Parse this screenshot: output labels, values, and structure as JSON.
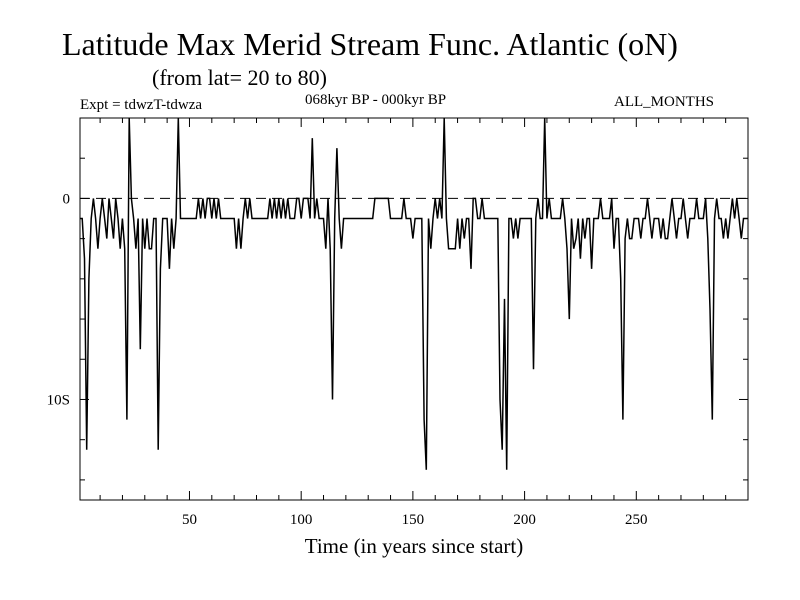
{
  "header": {
    "title": "Latitude Max Merid Stream Func. Atlantic (oN)",
    "subtitle": "(from lat= 20 to 80)",
    "expt": "Expt = tdwzT-tdwza",
    "period": "068kyr BP - 000kyr BP",
    "months": "ALL_MONTHS"
  },
  "chart_data": {
    "type": "line",
    "xlabel": "Time (in years since start)",
    "ylabel": "",
    "xlim": [
      1,
      300
    ],
    "ylim": [
      -15,
      4
    ],
    "x_ticks": [
      50,
      100,
      150,
      200,
      250
    ],
    "y_ticks": [
      {
        "value": 0,
        "label": "0"
      },
      {
        "value": -10,
        "label": "10S"
      }
    ],
    "reference_line": {
      "value": 0,
      "style": "dashed"
    },
    "grid": false,
    "legend": "none",
    "series": [
      {
        "points": [
          [
            1,
            -1
          ],
          [
            2,
            -1
          ],
          [
            3,
            -3
          ],
          [
            4,
            -12.5
          ],
          [
            5,
            -4
          ],
          [
            6,
            -1
          ],
          [
            7,
            0
          ],
          [
            8,
            -1
          ],
          [
            9,
            -2.5
          ],
          [
            10,
            -1
          ],
          [
            11,
            0
          ],
          [
            12,
            -1
          ],
          [
            13,
            -2
          ],
          [
            14,
            0
          ],
          [
            15,
            -1
          ],
          [
            16,
            -2
          ],
          [
            17,
            0
          ],
          [
            18,
            -1
          ],
          [
            19,
            -2.5
          ],
          [
            20,
            -1
          ],
          [
            21,
            -2.5
          ],
          [
            22,
            -11
          ],
          [
            23,
            4
          ],
          [
            24,
            0
          ],
          [
            25,
            -1
          ],
          [
            26,
            -2.5
          ],
          [
            27,
            -1
          ],
          [
            28,
            -7.5
          ],
          [
            29,
            -1
          ],
          [
            30,
            -2.5
          ],
          [
            31,
            -1
          ],
          [
            32,
            -2.5
          ],
          [
            33,
            -2.5
          ],
          [
            34,
            -1
          ],
          [
            35,
            -1
          ],
          [
            36,
            -12.5
          ],
          [
            37,
            -3.5
          ],
          [
            38,
            -1
          ],
          [
            39,
            -1
          ],
          [
            40,
            -1
          ],
          [
            41,
            -3.5
          ],
          [
            42,
            -1
          ],
          [
            43,
            -2.5
          ],
          [
            44,
            -1
          ],
          [
            45,
            4
          ],
          [
            46,
            -1
          ],
          [
            47,
            -1
          ],
          [
            48,
            -1
          ],
          [
            49,
            -1
          ],
          [
            50,
            -1
          ],
          [
            51,
            -1
          ],
          [
            52,
            -1
          ],
          [
            53,
            -1
          ],
          [
            54,
            0
          ],
          [
            55,
            -1
          ],
          [
            56,
            0
          ],
          [
            57,
            -1
          ],
          [
            58,
            0
          ],
          [
            59,
            0
          ],
          [
            60,
            -1
          ],
          [
            61,
            0
          ],
          [
            62,
            -1
          ],
          [
            63,
            0
          ],
          [
            64,
            -1
          ],
          [
            65,
            -1
          ],
          [
            66,
            -1
          ],
          [
            67,
            -1
          ],
          [
            68,
            -1
          ],
          [
            69,
            -1
          ],
          [
            70,
            -1
          ],
          [
            71,
            -2.5
          ],
          [
            72,
            -1
          ],
          [
            73,
            -2.5
          ],
          [
            74,
            -1
          ],
          [
            75,
            0
          ],
          [
            76,
            -1
          ],
          [
            77,
            0
          ],
          [
            78,
            -1
          ],
          [
            79,
            -1
          ],
          [
            80,
            -1
          ],
          [
            81,
            -1
          ],
          [
            82,
            -1
          ],
          [
            83,
            -1
          ],
          [
            84,
            -1
          ],
          [
            85,
            -1
          ],
          [
            86,
            0
          ],
          [
            87,
            -1
          ],
          [
            88,
            0
          ],
          [
            89,
            -1
          ],
          [
            90,
            0
          ],
          [
            91,
            -1
          ],
          [
            92,
            0
          ],
          [
            93,
            -1
          ],
          [
            94,
            0
          ],
          [
            95,
            -1
          ],
          [
            96,
            -1
          ],
          [
            97,
            -1
          ],
          [
            98,
            0
          ],
          [
            99,
            0
          ],
          [
            100,
            -1
          ],
          [
            101,
            0
          ],
          [
            102,
            0
          ],
          [
            103,
            0
          ],
          [
            104,
            -1
          ],
          [
            105,
            3
          ],
          [
            106,
            -1
          ],
          [
            107,
            0
          ],
          [
            108,
            -1
          ],
          [
            109,
            -1
          ],
          [
            110,
            -1
          ],
          [
            111,
            -2.5
          ],
          [
            112,
            0
          ],
          [
            113,
            -2.5
          ],
          [
            114,
            -10
          ],
          [
            115,
            -1
          ],
          [
            116,
            2.5
          ],
          [
            117,
            -1
          ],
          [
            118,
            -2.5
          ],
          [
            119,
            -1
          ],
          [
            120,
            -1
          ],
          [
            121,
            -1
          ],
          [
            122,
            -1
          ],
          [
            123,
            -1
          ],
          [
            124,
            -1
          ],
          [
            125,
            -1
          ],
          [
            126,
            -1
          ],
          [
            127,
            -1
          ],
          [
            128,
            -1
          ],
          [
            129,
            -1
          ],
          [
            130,
            -1
          ],
          [
            131,
            -1
          ],
          [
            132,
            -1
          ],
          [
            133,
            0
          ],
          [
            134,
            0
          ],
          [
            135,
            0
          ],
          [
            136,
            0
          ],
          [
            137,
            0
          ],
          [
            138,
            0
          ],
          [
            139,
            0
          ],
          [
            140,
            -1
          ],
          [
            141,
            -1
          ],
          [
            142,
            -1
          ],
          [
            143,
            -1
          ],
          [
            144,
            -1
          ],
          [
            145,
            -1
          ],
          [
            146,
            0
          ],
          [
            147,
            -1
          ],
          [
            148,
            -1
          ],
          [
            149,
            -1
          ],
          [
            150,
            -2
          ],
          [
            151,
            -1
          ],
          [
            152,
            -1
          ],
          [
            153,
            -1
          ],
          [
            154,
            -1
          ],
          [
            155,
            -11
          ],
          [
            156,
            -13.5
          ],
          [
            157,
            -1
          ],
          [
            158,
            -2.5
          ],
          [
            159,
            -1
          ],
          [
            160,
            0
          ],
          [
            161,
            -1
          ],
          [
            162,
            0
          ],
          [
            163,
            -1
          ],
          [
            164,
            4
          ],
          [
            165,
            -1
          ],
          [
            166,
            -2.5
          ],
          [
            167,
            -2.5
          ],
          [
            168,
            -2.5
          ],
          [
            169,
            -2.5
          ],
          [
            170,
            -1
          ],
          [
            171,
            -2.5
          ],
          [
            172,
            -1
          ],
          [
            173,
            -2
          ],
          [
            174,
            -1
          ],
          [
            175,
            -1
          ],
          [
            176,
            -3.5
          ],
          [
            177,
            0
          ],
          [
            178,
            0
          ],
          [
            179,
            -1
          ],
          [
            180,
            -1
          ],
          [
            181,
            0
          ],
          [
            182,
            -1
          ],
          [
            183,
            -1
          ],
          [
            184,
            -1
          ],
          [
            185,
            -1
          ],
          [
            186,
            -1
          ],
          [
            187,
            -1
          ],
          [
            188,
            -1
          ],
          [
            189,
            -10
          ],
          [
            190,
            -12.5
          ],
          [
            191,
            -5
          ],
          [
            192,
            -13.5
          ],
          [
            193,
            -1
          ],
          [
            194,
            -1
          ],
          [
            195,
            -2
          ],
          [
            196,
            -1
          ],
          [
            197,
            -2
          ],
          [
            198,
            -1
          ],
          [
            199,
            -1
          ],
          [
            200,
            -1
          ],
          [
            201,
            -1
          ],
          [
            202,
            -1
          ],
          [
            203,
            -1
          ],
          [
            204,
            -8.5
          ],
          [
            205,
            -1
          ],
          [
            206,
            0
          ],
          [
            207,
            -1
          ],
          [
            208,
            -1
          ],
          [
            209,
            4
          ],
          [
            210,
            -1
          ],
          [
            211,
            0
          ],
          [
            212,
            -1
          ],
          [
            213,
            -1
          ],
          [
            214,
            -1
          ],
          [
            215,
            -1
          ],
          [
            216,
            -1
          ],
          [
            217,
            0
          ],
          [
            218,
            -1
          ],
          [
            219,
            -2.5
          ],
          [
            220,
            -6
          ],
          [
            221,
            -1
          ],
          [
            222,
            -2.5
          ],
          [
            223,
            -2
          ],
          [
            224,
            -1
          ],
          [
            225,
            -3
          ],
          [
            226,
            -1
          ],
          [
            227,
            -2
          ],
          [
            228,
            -1
          ],
          [
            229,
            -1
          ],
          [
            230,
            -3.5
          ],
          [
            231,
            -1
          ],
          [
            232,
            -1
          ],
          [
            233,
            -1
          ],
          [
            234,
            0
          ],
          [
            235,
            -1
          ],
          [
            236,
            -1
          ],
          [
            237,
            -1
          ],
          [
            238,
            -1
          ],
          [
            239,
            0
          ],
          [
            240,
            -2.5
          ],
          [
            241,
            -1
          ],
          [
            242,
            -1
          ],
          [
            243,
            -4
          ],
          [
            244,
            -11
          ],
          [
            245,
            -2
          ],
          [
            246,
            -1
          ],
          [
            247,
            -2
          ],
          [
            248,
            -2
          ],
          [
            249,
            -1
          ],
          [
            250,
            -1
          ],
          [
            251,
            -1
          ],
          [
            252,
            -2
          ],
          [
            253,
            -1
          ],
          [
            254,
            -1
          ],
          [
            255,
            0
          ],
          [
            256,
            -1
          ],
          [
            257,
            -2
          ],
          [
            258,
            -1
          ],
          [
            259,
            -1
          ],
          [
            260,
            -1
          ],
          [
            261,
            -2
          ],
          [
            262,
            -1
          ],
          [
            263,
            -2
          ],
          [
            264,
            -2
          ],
          [
            265,
            -1
          ],
          [
            266,
            0
          ],
          [
            267,
            -1
          ],
          [
            268,
            -2
          ],
          [
            269,
            -1
          ],
          [
            270,
            -1
          ],
          [
            271,
            0
          ],
          [
            272,
            -1
          ],
          [
            273,
            -2
          ],
          [
            274,
            -1
          ],
          [
            275,
            -1
          ],
          [
            276,
            -1
          ],
          [
            277,
            0
          ],
          [
            278,
            -1
          ],
          [
            279,
            -1
          ],
          [
            280,
            -1
          ],
          [
            281,
            0
          ],
          [
            282,
            -2
          ],
          [
            283,
            -5.5
          ],
          [
            284,
            -11
          ],
          [
            285,
            -1
          ],
          [
            286,
            0
          ],
          [
            287,
            -1
          ],
          [
            288,
            -1
          ],
          [
            289,
            -2
          ],
          [
            290,
            -1
          ],
          [
            291,
            -2
          ],
          [
            292,
            -1
          ],
          [
            293,
            0
          ],
          [
            294,
            -1
          ],
          [
            295,
            0
          ],
          [
            296,
            -1
          ],
          [
            297,
            -2
          ],
          [
            298,
            -1
          ],
          [
            299,
            -1
          ],
          [
            300,
            -1
          ]
        ]
      }
    ]
  }
}
